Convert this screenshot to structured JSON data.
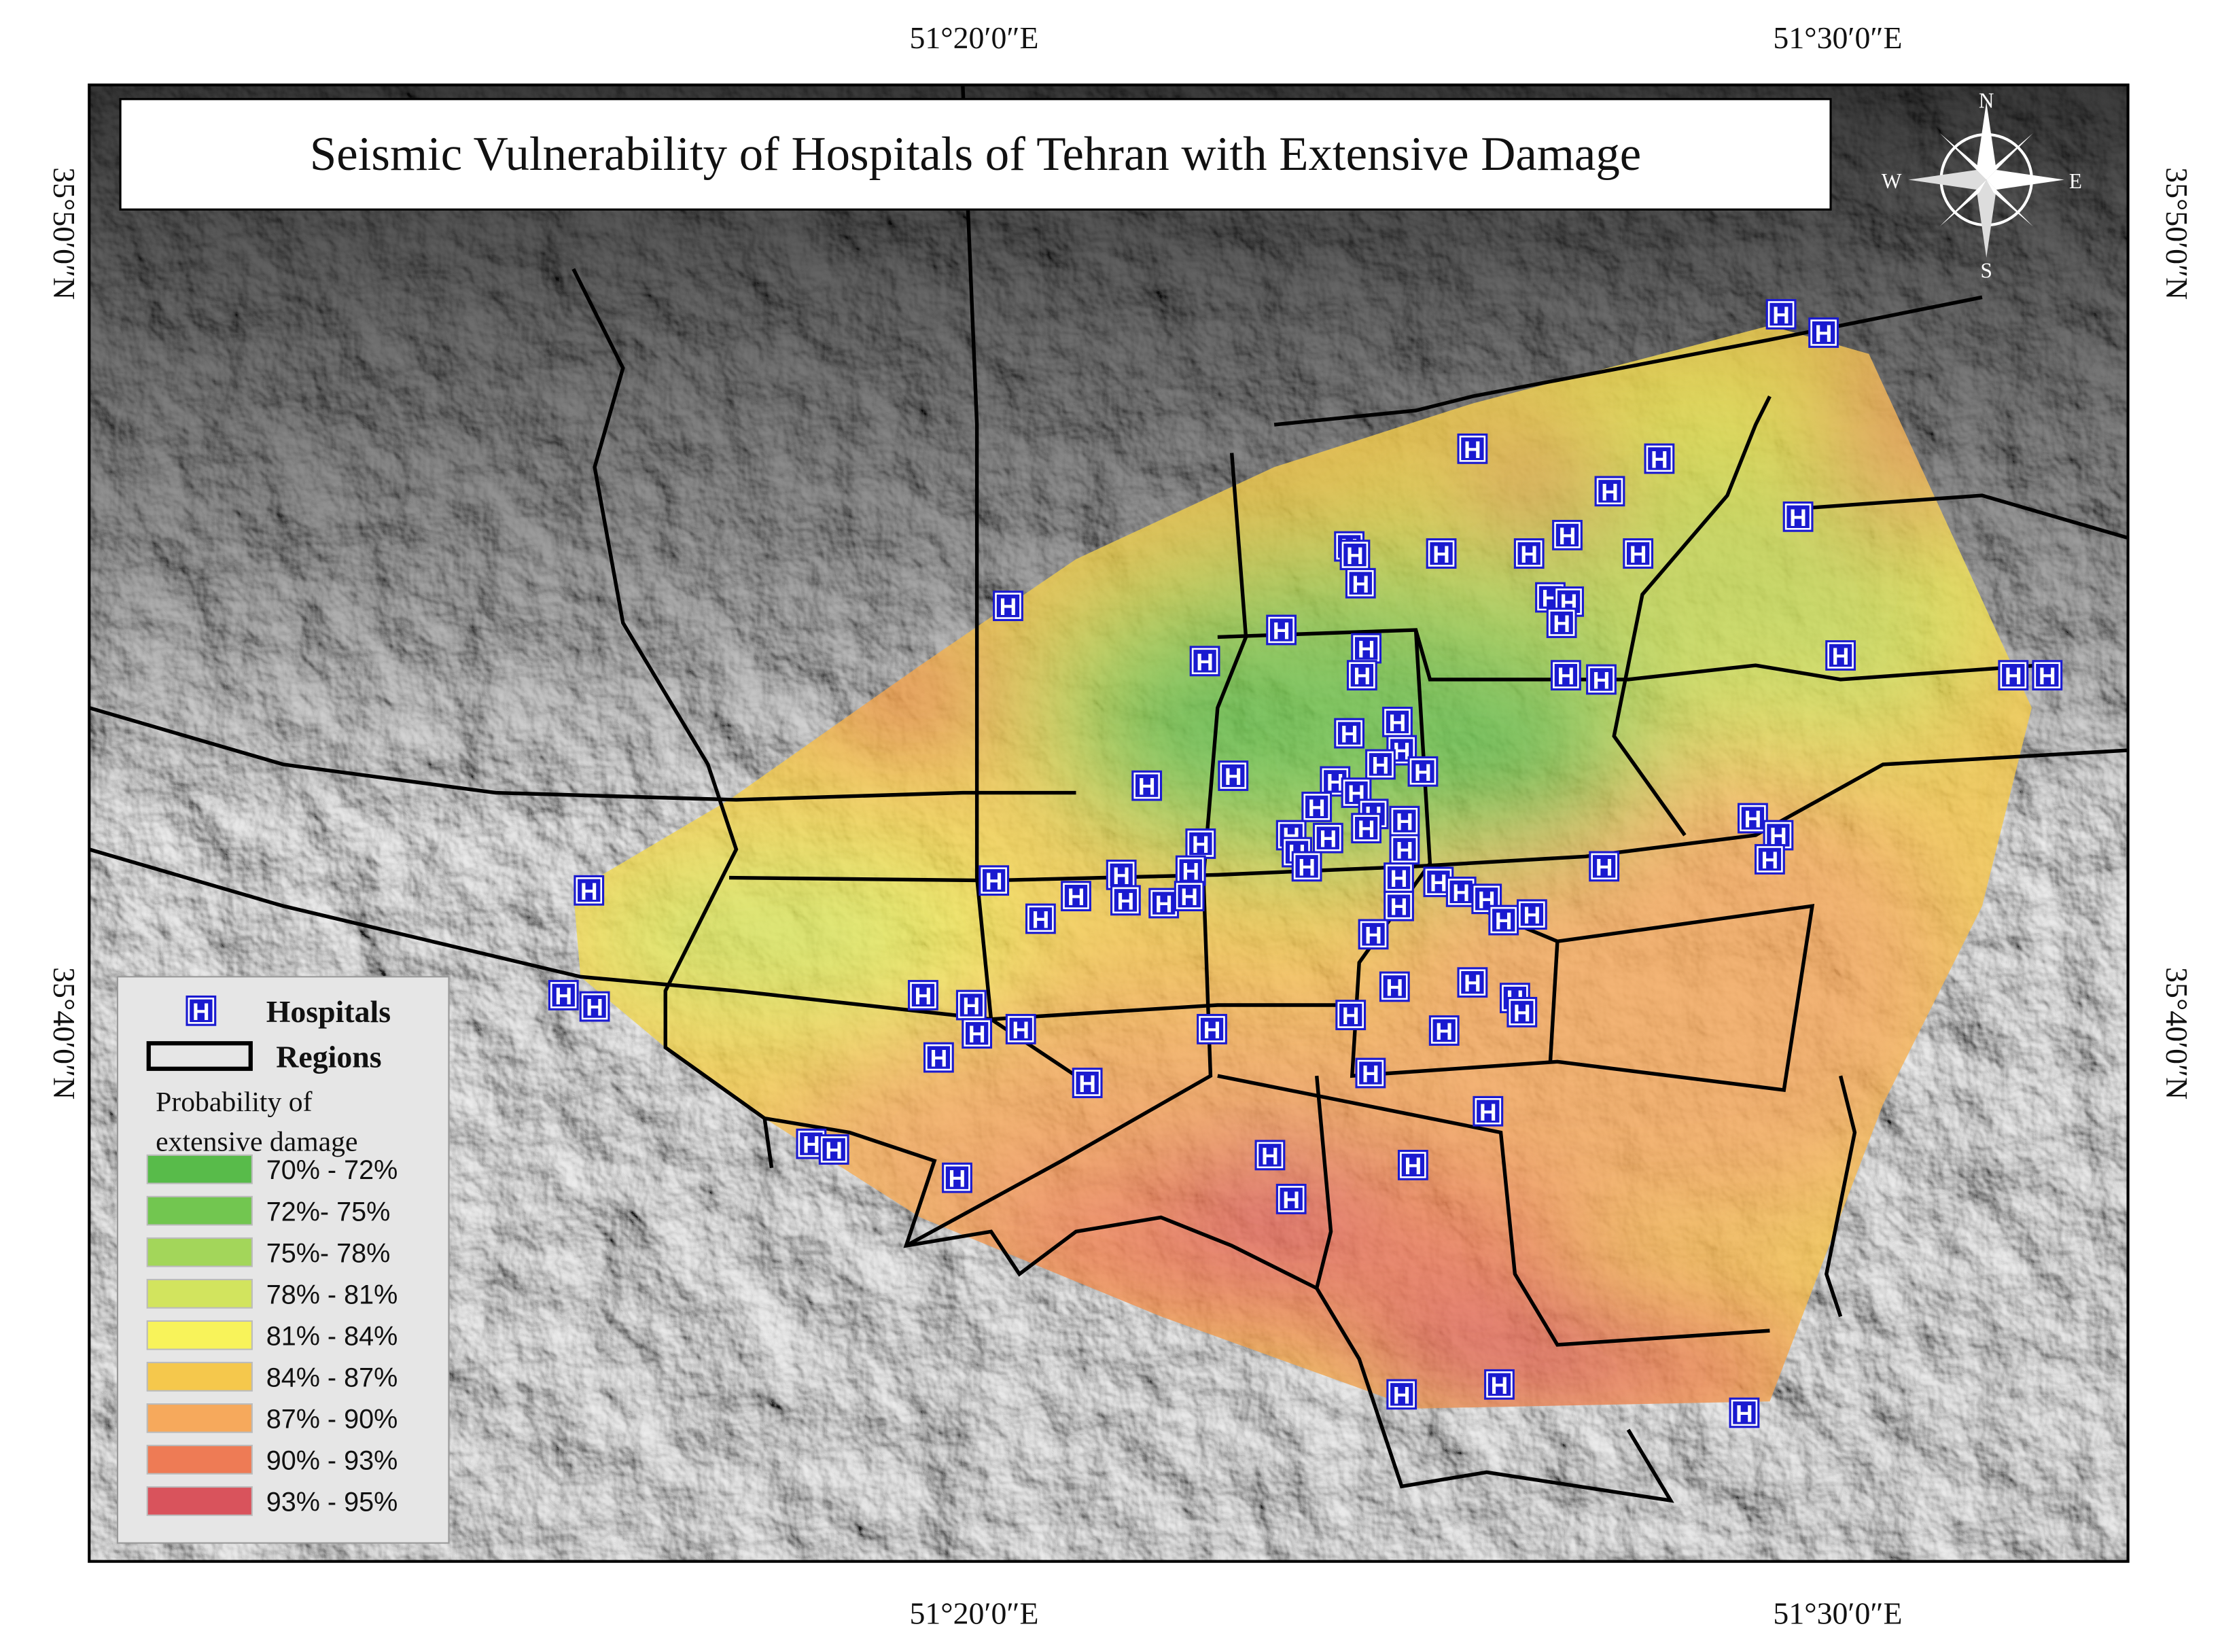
{
  "title": "Seismic Vulnerability of Hospitals of Tehran with Extensive Damage",
  "graticule": {
    "top": [
      "51°20′0″E",
      "51°30′0″E"
    ],
    "bottom": [
      "51°20′0″E",
      "51°30′0″E"
    ],
    "left": [
      "35°50′0″N",
      "35°40′0″N"
    ],
    "right": [
      "35°50′0″N",
      "35°40′0″N"
    ]
  },
  "compass": {
    "north": "N",
    "south": "S",
    "east": "E",
    "west": "W"
  },
  "hospital_symbol": "H",
  "legend": {
    "hospitals": "Hospitals",
    "regions": "Regions",
    "probability_title": [
      "Probability of",
      "extensive damage"
    ],
    "classes": [
      {
        "label": "70% - 72%",
        "color": "#58bb4a"
      },
      {
        "label": "72%- 75%",
        "color": "#72c650"
      },
      {
        "label": "75%- 78%",
        "color": "#a3d65a"
      },
      {
        "label": "78% - 81%",
        "color": "#d2e45e"
      },
      {
        "label": "81% - 84%",
        "color": "#f8f35a"
      },
      {
        "label": "84% - 87%",
        "color": "#f5c84c"
      },
      {
        "label": "87% - 90%",
        "color": "#f6a95c"
      },
      {
        "label": "90% - 93%",
        "color": "#ee7b55"
      },
      {
        "label": "93% - 95%",
        "color": "#d9535c"
      }
    ]
  }
}
